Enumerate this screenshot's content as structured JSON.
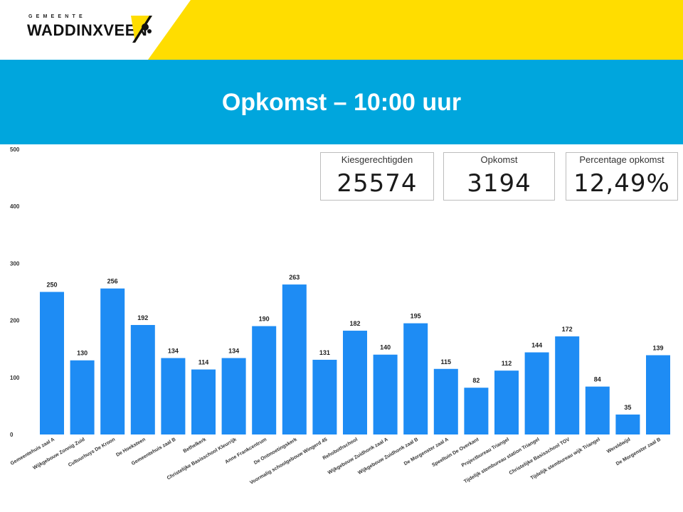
{
  "header": {
    "logo_small": "GEMEENTE",
    "logo_name": "WADDINXVEEN",
    "title": "Opkomst – 10:00 uur"
  },
  "kpis": [
    {
      "label": "Kiesgerechtigden",
      "value": "25574"
    },
    {
      "label": "Opkomst",
      "value": "3194"
    },
    {
      "label": "Percentage opkomst",
      "value": "12,49%"
    }
  ],
  "colors": {
    "bar": "#1e8cf4",
    "banner": "#00a6dd",
    "yellow": "#ffdd00"
  },
  "chart_data": {
    "type": "bar",
    "title": "",
    "xlabel": "",
    "ylabel": "",
    "ylim": [
      0,
      500
    ],
    "yticks": [
      0,
      100,
      200,
      300,
      400,
      500
    ],
    "grid": false,
    "categories": [
      "Gemeentehuis zaal A",
      "Wijkgebouw Zonnig Zuid",
      "Cultuurhuys De Kroon",
      "De Hoeksteen",
      "Gemeentehuis zaal B",
      "Bethelkerk",
      "Christelijke Basisschool Kleurrijk",
      "Anne Frankcentrum",
      "De Ontmoetingskerk",
      "Voormalig schoolgebouw Wingerd 45",
      "Rehobothschool",
      "Wijkgebouw Zuidhonk zaal A",
      "Wijkgebouw Zuidhonk zaal B",
      "De Morgenster zaal A",
      "Speeltuin De Overkant",
      "Projectbureau Triangel",
      "Tijdelijk stembureau station Triangel",
      "Christelijke Basisschool TOV",
      "Tijdelijk stembureau wijk Triangel",
      "Wereldwijd",
      "De Morgenster zaal B"
    ],
    "values": [
      250,
      130,
      256,
      192,
      134,
      114,
      134,
      190,
      263,
      131,
      182,
      140,
      195,
      115,
      82,
      112,
      144,
      172,
      84,
      35,
      139
    ]
  }
}
